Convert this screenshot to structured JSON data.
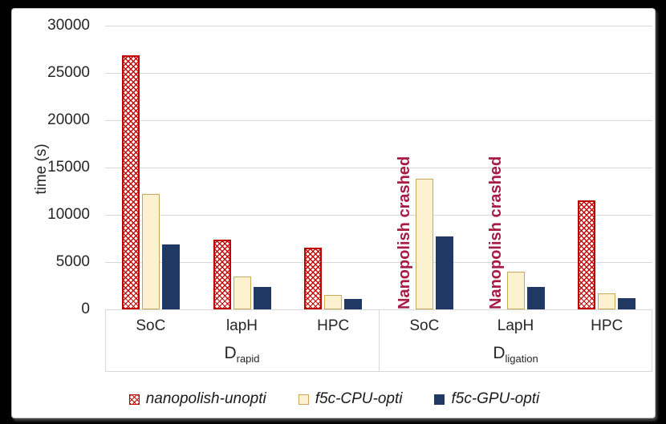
{
  "chart_data": {
    "type": "bar",
    "title": "",
    "ylabel": "time (s)",
    "ylim": [
      0,
      30000
    ],
    "ytick_interval": 5000,
    "yticks": [
      "0",
      "5000",
      "10000",
      "15000",
      "20000",
      "25000",
      "30000"
    ],
    "grid": true,
    "gridline_color": "#D9D9D9",
    "axis_text_color": "#262626",
    "legend_position": "bottom",
    "groups": [
      {
        "name": "D",
        "subscript": "rapid",
        "categories": [
          "SoC",
          "lapH",
          "HPC"
        ]
      },
      {
        "name": "D",
        "subscript": "ligation",
        "categories": [
          "SoC",
          "LapH",
          "HPC"
        ]
      }
    ],
    "categories_flat": [
      "SoC",
      "lapH",
      "HPC",
      "SoC",
      "LapH",
      "HPC"
    ],
    "series": [
      {
        "name": "nanopolish-unopti",
        "style": "crosshatch",
        "color": "#C00000",
        "fill": "#FFFFFF",
        "border": "#C00000",
        "values": [
          26900,
          7400,
          6500,
          null,
          null,
          11500
        ]
      },
      {
        "name": "f5c-CPU-opti",
        "style": "solid",
        "color": "#FDF2CF",
        "fill": "#FDF2CF",
        "border": "#C9A85C",
        "values": [
          12200,
          3500,
          1500,
          13800,
          4000,
          1700
        ]
      },
      {
        "name": "f5c-GPU-opti",
        "style": "solid",
        "color": "#1F3864",
        "fill": "#1F3864",
        "border": "#1F3864",
        "values": [
          6900,
          2400,
          1100,
          7700,
          2400,
          1200
        ]
      }
    ],
    "annotations": [
      {
        "text": "Nanopolish crashed",
        "category_index": 3,
        "series_index": 0,
        "color": "#A61C45"
      },
      {
        "text": "Nanopolish crashed",
        "category_index": 4,
        "series_index": 0,
        "color": "#A61C45"
      }
    ]
  }
}
